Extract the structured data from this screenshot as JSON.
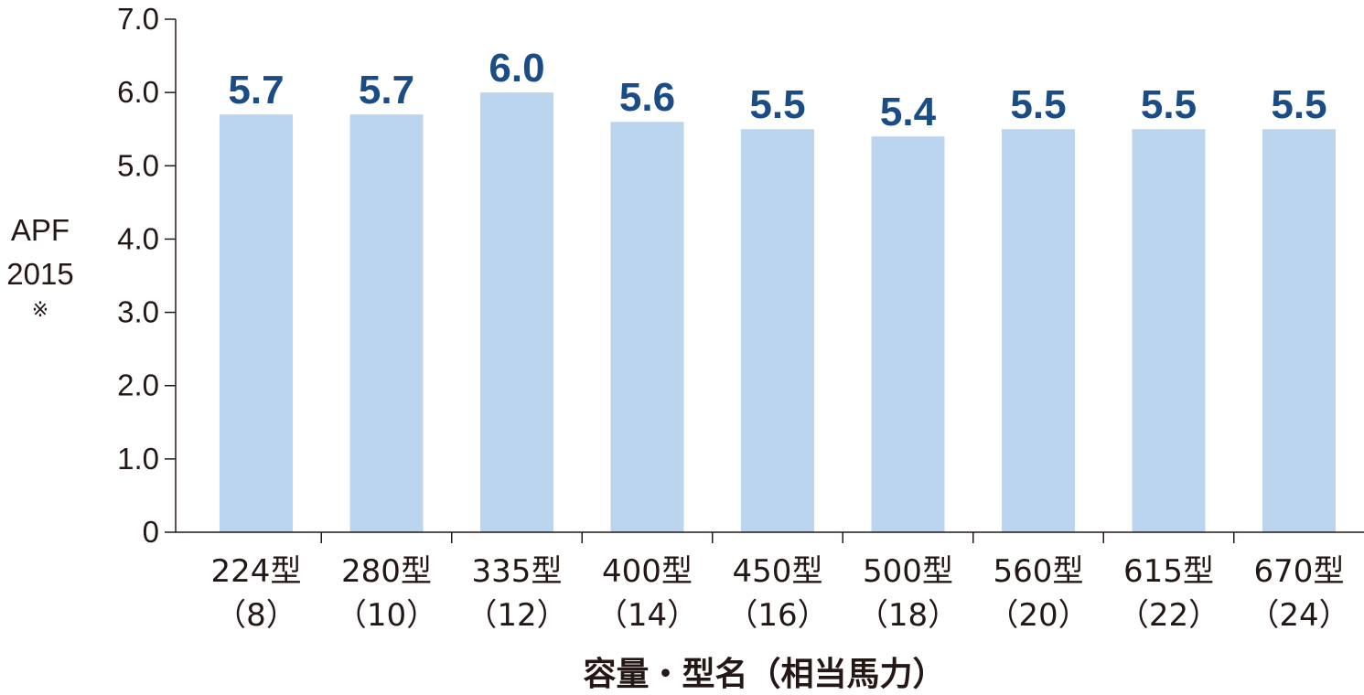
{
  "chart_data": {
    "type": "bar",
    "categories": [
      {
        "model": "224型",
        "hp": "（8）"
      },
      {
        "model": "280型",
        "hp": "（10）"
      },
      {
        "model": "335型",
        "hp": "（12）"
      },
      {
        "model": "400型",
        "hp": "（14）"
      },
      {
        "model": "450型",
        "hp": "（16）"
      },
      {
        "model": "500型",
        "hp": "（18）"
      },
      {
        "model": "560型",
        "hp": "（20）"
      },
      {
        "model": "615型",
        "hp": "（22）"
      },
      {
        "model": "670型",
        "hp": "（24）"
      }
    ],
    "values": [
      5.7,
      5.7,
      6.0,
      5.6,
      5.5,
      5.4,
      5.5,
      5.5,
      5.5
    ],
    "value_labels": [
      "5.7",
      "5.7",
      "6.0",
      "5.6",
      "5.5",
      "5.4",
      "5.5",
      "5.5",
      "5.5"
    ],
    "ylabel": [
      "APF",
      "2015",
      "※"
    ],
    "xlabel": "容量・型名（相当馬力）",
    "ylim": [
      0,
      7
    ],
    "yticks": [
      {
        "value": 0,
        "label": "0"
      },
      {
        "value": 1,
        "label": "1.0"
      },
      {
        "value": 2,
        "label": "2.0"
      },
      {
        "value": 3,
        "label": "3.0"
      },
      {
        "value": 4,
        "label": "4.0"
      },
      {
        "value": 5,
        "label": "5.0"
      },
      {
        "value": 6,
        "label": "6.0"
      },
      {
        "value": 7,
        "label": "7.0"
      }
    ],
    "grid": false,
    "colors": {
      "bar": "#bcd5ee",
      "value_label": "#1a4c86",
      "axis": "#231815"
    }
  }
}
